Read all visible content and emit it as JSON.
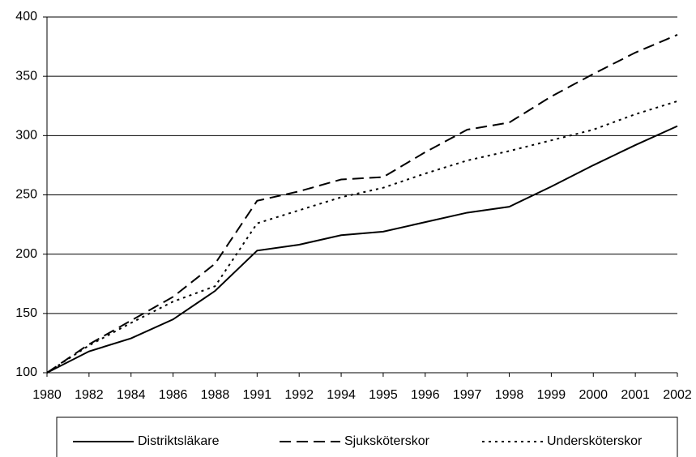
{
  "chart_data": {
    "type": "line",
    "categories": [
      1980,
      1982,
      1984,
      1986,
      1988,
      1991,
      1992,
      1994,
      1995,
      1996,
      1997,
      1998,
      1999,
      2000,
      2001,
      2002
    ],
    "series": [
      {
        "name": "Distriktsläkare",
        "color": "#000000",
        "dash": "solid",
        "values": [
          100,
          118,
          129,
          145,
          169,
          203,
          208,
          216,
          219,
          227,
          235,
          240,
          257,
          275,
          292,
          308
        ]
      },
      {
        "name": "Sjuksköterskor",
        "color": "#000000",
        "dash": "dashed",
        "values": [
          100,
          124,
          144,
          164,
          192,
          245,
          253,
          263,
          265,
          286,
          305,
          311,
          333,
          352,
          370,
          385
        ]
      },
      {
        "name": "Undersköterskor",
        "color": "#000000",
        "dash": "dotted",
        "values": [
          100,
          123,
          142,
          160,
          173,
          226,
          237,
          248,
          256,
          268,
          279,
          287,
          296,
          305,
          318,
          329
        ]
      }
    ],
    "ylim": [
      100,
      400
    ],
    "yticks": [
      100,
      150,
      200,
      250,
      300,
      350,
      400
    ],
    "grid": true,
    "legend": "bottom"
  }
}
